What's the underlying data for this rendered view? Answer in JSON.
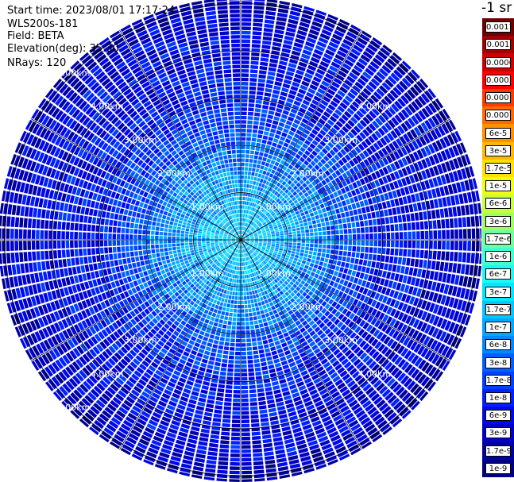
{
  "header": {
    "start_time": "Start time: 2023/08/01 17:17:24",
    "instrument": "WLS200s-181",
    "field": "Field: BETA",
    "elevation": "Elevation(deg): 35.30",
    "nrays": "NRays: 120"
  },
  "colorbar": {
    "unit": "-1 sr",
    "labels": [
      "0.0017",
      "0.001",
      "0.0006",
      "0.0003",
      "0.00017",
      "0.0001",
      "6e-5",
      "3e-5",
      "1.7e-5",
      "1e-5",
      "6e-6",
      "3e-6",
      "1.7e-6",
      "1e-6",
      "6e-7",
      "3e-7",
      "1.7e-7",
      "1e-7",
      "6e-8",
      "3e-8",
      "1.7e-8",
      "1e-8",
      "6e-9",
      "3e-9",
      "1.7e-9",
      "1e-9"
    ],
    "colors": [
      "#6e0000",
      "#a00000",
      "#d00000",
      "#ff0000",
      "#ff3a00",
      "#ff6a00",
      "#ff9000",
      "#ffb800",
      "#ffe000",
      "#f0ff10",
      "#c8ff40",
      "#a0ff60",
      "#70ffa0",
      "#40ffd0",
      "#20f8f0",
      "#00e8ff",
      "#00c8ff",
      "#00a8ff",
      "#0088ff",
      "#0060ff",
      "#0040ff",
      "#0020ff",
      "#0008e8",
      "#0000c8",
      "#0000a0",
      "#000080"
    ]
  },
  "chart_data": {
    "type": "heatmap",
    "projection": "polar (PPI scan)",
    "field": "BETA",
    "range_rings_km": [
      1,
      2,
      3,
      4,
      5
    ],
    "ring_labels": [
      "1.00km",
      "2.00km",
      "3.00km",
      "4.00km",
      "5.00km"
    ],
    "spokes_deg": 30,
    "n_rays": 120,
    "scale": "log",
    "value_range": [
      "1e-9",
      "0.0017"
    ],
    "value_by_range_km": [
      [
        0.5,
        1.7e-07
      ],
      [
        1.0,
        1e-07
      ],
      [
        1.5,
        6e-08
      ],
      [
        2.0,
        3e-08
      ],
      [
        2.5,
        1.7e-08
      ],
      [
        3.0,
        1e-08
      ],
      [
        3.5,
        8e-09
      ],
      [
        4.0,
        6e-09
      ],
      [
        4.5,
        6e-09
      ],
      [
        5.0,
        3e-09
      ],
      [
        5.5,
        4e-09
      ],
      [
        6.0,
        6e-09
      ]
    ]
  }
}
